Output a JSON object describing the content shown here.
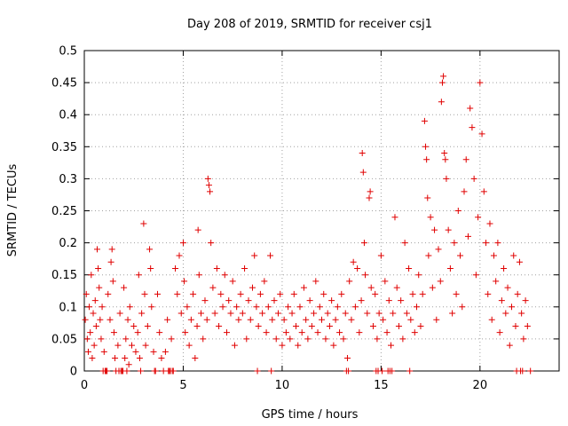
{
  "chart_data": {
    "type": "scatter",
    "title": "Day 208 of 2019, SRMTID for receiver csj1",
    "xlabel": "GPS time / hours",
    "ylabel": "SRMTID / TECUs",
    "xlim": [
      0,
      24
    ],
    "ylim": [
      0,
      0.5
    ],
    "x_ticks": [
      0,
      5,
      10,
      15,
      20
    ],
    "x_tick_labels": [
      "0",
      "5",
      "10",
      "15",
      "20"
    ],
    "y_ticks": [
      0,
      0.05,
      0.1,
      0.15,
      0.2,
      0.25,
      0.3,
      0.35,
      0.4,
      0.45,
      0.5
    ],
    "y_tick_labels": [
      "0",
      "0.05",
      "0.1",
      "0.15",
      "0.2",
      "0.25",
      "0.3",
      "0.35",
      "0.4",
      "0.45",
      "0.5"
    ],
    "grid": true,
    "marker": "plus",
    "color": "#e00000",
    "series": [
      {
        "name": "csj1",
        "points": [
          [
            0.05,
            0.08
          ],
          [
            0.1,
            0.12
          ],
          [
            0.15,
            0.05
          ],
          [
            0.2,
            0.03
          ],
          [
            0.25,
            0.1
          ],
          [
            0.3,
            0.06
          ],
          [
            0.35,
            0.15
          ],
          [
            0.4,
            0.02
          ],
          [
            0.45,
            0.09
          ],
          [
            0.5,
            0.04
          ],
          [
            0.55,
            0.11
          ],
          [
            0.6,
            0.07
          ],
          [
            0.65,
            0.19
          ],
          [
            0.7,
            0.16
          ],
          [
            0.75,
            0.13
          ],
          [
            0.8,
            0.08
          ],
          [
            0.85,
            0.05
          ],
          [
            0.9,
            0.1
          ],
          [
            1.0,
            0.03
          ],
          [
            1.1,
            0.0
          ],
          [
            1.2,
            0.12
          ],
          [
            1.3,
            0.08
          ],
          [
            1.35,
            0.17
          ],
          [
            1.4,
            0.19
          ],
          [
            1.45,
            0.14
          ],
          [
            1.5,
            0.06
          ],
          [
            1.55,
            0.02
          ],
          [
            1.6,
            0.0
          ],
          [
            1.7,
            0.04
          ],
          [
            1.8,
            0.09
          ],
          [
            1.9,
            0.0
          ],
          [
            2.0,
            0.13
          ],
          [
            2.05,
            0.02
          ],
          [
            2.1,
            0.05
          ],
          [
            2.2,
            0.08
          ],
          [
            2.25,
            0.01
          ],
          [
            2.3,
            0.1
          ],
          [
            2.4,
            0.04
          ],
          [
            2.5,
            0.07
          ],
          [
            2.6,
            0.03
          ],
          [
            2.7,
            0.06
          ],
          [
            2.75,
            0.15
          ],
          [
            2.8,
            0.02
          ],
          [
            2.9,
            0.09
          ],
          [
            3.0,
            0.23
          ],
          [
            3.05,
            0.12
          ],
          [
            3.1,
            0.04
          ],
          [
            3.2,
            0.07
          ],
          [
            3.3,
            0.19
          ],
          [
            3.35,
            0.16
          ],
          [
            3.4,
            0.1
          ],
          [
            3.5,
            0.03
          ],
          [
            3.6,
            0.0
          ],
          [
            3.7,
            0.12
          ],
          [
            3.8,
            0.06
          ],
          [
            3.9,
            0.02
          ],
          [
            4.0,
            0.0
          ],
          [
            4.1,
            0.03
          ],
          [
            4.2,
            0.08
          ],
          [
            4.3,
            0.0
          ],
          [
            4.4,
            0.05
          ],
          [
            4.5,
            0.0
          ],
          [
            4.6,
            0.16
          ],
          [
            4.7,
            0.12
          ],
          [
            4.8,
            0.18
          ],
          [
            4.9,
            0.09
          ],
          [
            5.0,
            0.2
          ],
          [
            5.05,
            0.14
          ],
          [
            5.1,
            0.06
          ],
          [
            5.2,
            0.1
          ],
          [
            5.3,
            0.04
          ],
          [
            5.4,
            0.08
          ],
          [
            5.5,
            0.12
          ],
          [
            5.6,
            0.02
          ],
          [
            5.7,
            0.07
          ],
          [
            5.75,
            0.22
          ],
          [
            5.8,
            0.15
          ],
          [
            5.9,
            0.09
          ],
          [
            6.0,
            0.05
          ],
          [
            6.1,
            0.11
          ],
          [
            6.2,
            0.08
          ],
          [
            6.25,
            0.3
          ],
          [
            6.3,
            0.29
          ],
          [
            6.35,
            0.28
          ],
          [
            6.4,
            0.2
          ],
          [
            6.5,
            0.13
          ],
          [
            6.6,
            0.09
          ],
          [
            6.7,
            0.16
          ],
          [
            6.8,
            0.07
          ],
          [
            6.9,
            0.12
          ],
          [
            7.0,
            0.1
          ],
          [
            7.1,
            0.15
          ],
          [
            7.2,
            0.06
          ],
          [
            7.3,
            0.11
          ],
          [
            7.4,
            0.09
          ],
          [
            7.5,
            0.14
          ],
          [
            7.6,
            0.04
          ],
          [
            7.7,
            0.1
          ],
          [
            7.8,
            0.08
          ],
          [
            7.9,
            0.12
          ],
          [
            8.0,
            0.09
          ],
          [
            8.1,
            0.16
          ],
          [
            8.2,
            0.05
          ],
          [
            8.3,
            0.11
          ],
          [
            8.4,
            0.08
          ],
          [
            8.5,
            0.13
          ],
          [
            8.6,
            0.18
          ],
          [
            8.7,
            0.1
          ],
          [
            8.8,
            0.07
          ],
          [
            8.9,
            0.12
          ],
          [
            9.0,
            0.09
          ],
          [
            9.1,
            0.14
          ],
          [
            9.2,
            0.06
          ],
          [
            9.3,
            0.1
          ],
          [
            9.4,
            0.18
          ],
          [
            9.5,
            0.08
          ],
          [
            9.6,
            0.11
          ],
          [
            9.7,
            0.05
          ],
          [
            9.8,
            0.09
          ],
          [
            9.9,
            0.12
          ],
          [
            10.0,
            0.04
          ],
          [
            10.1,
            0.08
          ],
          [
            10.2,
            0.06
          ],
          [
            10.3,
            0.1
          ],
          [
            10.4,
            0.05
          ],
          [
            10.5,
            0.09
          ],
          [
            10.6,
            0.12
          ],
          [
            10.7,
            0.07
          ],
          [
            10.8,
            0.04
          ],
          [
            10.9,
            0.1
          ],
          [
            11.0,
            0.06
          ],
          [
            11.1,
            0.13
          ],
          [
            11.2,
            0.08
          ],
          [
            11.3,
            0.05
          ],
          [
            11.4,
            0.11
          ],
          [
            11.5,
            0.07
          ],
          [
            11.6,
            0.09
          ],
          [
            11.7,
            0.14
          ],
          [
            11.8,
            0.06
          ],
          [
            11.9,
            0.1
          ],
          [
            12.0,
            0.08
          ],
          [
            12.1,
            0.12
          ],
          [
            12.2,
            0.05
          ],
          [
            12.3,
            0.09
          ],
          [
            12.4,
            0.07
          ],
          [
            12.5,
            0.11
          ],
          [
            12.6,
            0.04
          ],
          [
            12.7,
            0.08
          ],
          [
            12.8,
            0.1
          ],
          [
            12.9,
            0.06
          ],
          [
            13.0,
            0.12
          ],
          [
            13.1,
            0.05
          ],
          [
            13.2,
            0.09
          ],
          [
            13.3,
            0.02
          ],
          [
            13.4,
            0.14
          ],
          [
            13.5,
            0.08
          ],
          [
            13.6,
            0.17
          ],
          [
            13.7,
            0.1
          ],
          [
            13.8,
            0.16
          ],
          [
            13.9,
            0.06
          ],
          [
            14.0,
            0.11
          ],
          [
            14.05,
            0.34
          ],
          [
            14.1,
            0.31
          ],
          [
            14.15,
            0.2
          ],
          [
            14.2,
            0.15
          ],
          [
            14.3,
            0.09
          ],
          [
            14.4,
            0.27
          ],
          [
            14.45,
            0.28
          ],
          [
            14.5,
            0.13
          ],
          [
            14.6,
            0.07
          ],
          [
            14.7,
            0.12
          ],
          [
            14.8,
            0.05
          ],
          [
            14.9,
            0.09
          ],
          [
            15.0,
            0.18
          ],
          [
            15.1,
            0.08
          ],
          [
            15.2,
            0.14
          ],
          [
            15.3,
            0.06
          ],
          [
            15.4,
            0.11
          ],
          [
            15.5,
            0.04
          ],
          [
            15.6,
            0.09
          ],
          [
            15.7,
            0.24
          ],
          [
            15.8,
            0.13
          ],
          [
            15.9,
            0.07
          ],
          [
            16.0,
            0.11
          ],
          [
            16.1,
            0.05
          ],
          [
            16.2,
            0.2
          ],
          [
            16.3,
            0.09
          ],
          [
            16.4,
            0.16
          ],
          [
            16.5,
            0.08
          ],
          [
            16.6,
            0.12
          ],
          [
            16.7,
            0.06
          ],
          [
            16.8,
            0.1
          ],
          [
            16.9,
            0.15
          ],
          [
            17.0,
            0.07
          ],
          [
            17.1,
            0.12
          ],
          [
            17.2,
            0.39
          ],
          [
            17.25,
            0.35
          ],
          [
            17.3,
            0.33
          ],
          [
            17.35,
            0.27
          ],
          [
            17.4,
            0.18
          ],
          [
            17.5,
            0.24
          ],
          [
            17.6,
            0.13
          ],
          [
            17.7,
            0.22
          ],
          [
            17.8,
            0.08
          ],
          [
            17.9,
            0.19
          ],
          [
            18.0,
            0.14
          ],
          [
            18.05,
            0.42
          ],
          [
            18.1,
            0.45
          ],
          [
            18.15,
            0.46
          ],
          [
            18.2,
            0.34
          ],
          [
            18.25,
            0.33
          ],
          [
            18.3,
            0.3
          ],
          [
            18.4,
            0.22
          ],
          [
            18.5,
            0.16
          ],
          [
            18.6,
            0.09
          ],
          [
            18.7,
            0.2
          ],
          [
            18.8,
            0.12
          ],
          [
            18.9,
            0.25
          ],
          [
            19.0,
            0.18
          ],
          [
            19.1,
            0.1
          ],
          [
            19.2,
            0.28
          ],
          [
            19.3,
            0.33
          ],
          [
            19.4,
            0.21
          ],
          [
            19.5,
            0.41
          ],
          [
            19.6,
            0.38
          ],
          [
            19.7,
            0.3
          ],
          [
            19.8,
            0.15
          ],
          [
            19.9,
            0.24
          ],
          [
            20.0,
            0.45
          ],
          [
            20.1,
            0.37
          ],
          [
            20.2,
            0.28
          ],
          [
            20.3,
            0.2
          ],
          [
            20.4,
            0.12
          ],
          [
            20.5,
            0.23
          ],
          [
            20.6,
            0.08
          ],
          [
            20.7,
            0.18
          ],
          [
            20.8,
            0.14
          ],
          [
            20.9,
            0.2
          ],
          [
            21.0,
            0.06
          ],
          [
            21.1,
            0.11
          ],
          [
            21.2,
            0.16
          ],
          [
            21.3,
            0.09
          ],
          [
            21.4,
            0.13
          ],
          [
            21.5,
            0.04
          ],
          [
            21.6,
            0.1
          ],
          [
            21.7,
            0.18
          ],
          [
            21.8,
            0.07
          ],
          [
            21.9,
            0.12
          ],
          [
            22.0,
            0.17
          ],
          [
            22.1,
            0.09
          ],
          [
            22.2,
            0.05
          ],
          [
            22.3,
            0.11
          ],
          [
            22.4,
            0.07
          ]
        ]
      }
    ],
    "zero_markers_x": [
      0.95,
      1.05,
      1.15,
      1.75,
      1.85,
      1.95,
      2.15,
      2.85,
      3.55,
      4.25,
      4.35,
      4.45,
      8.75,
      9.45,
      13.25,
      13.35,
      14.75,
      14.85,
      15.05,
      15.35,
      15.45,
      15.55,
      16.45,
      21.85,
      22.05,
      22.15,
      22.55
    ]
  }
}
